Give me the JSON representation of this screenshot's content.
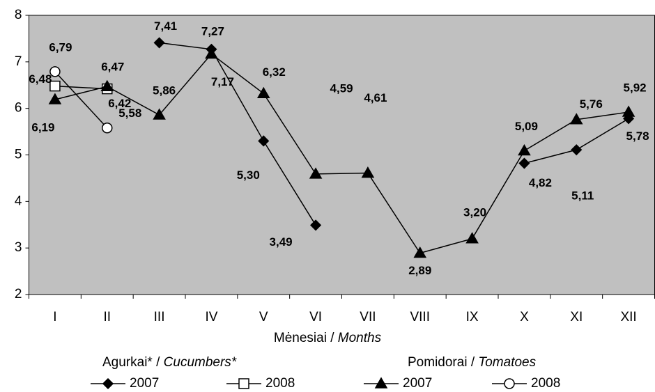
{
  "chart_data": {
    "type": "line",
    "categories": [
      "I",
      "II",
      "III",
      "IV",
      "V",
      "VI",
      "VII",
      "VIII",
      "IX",
      "X",
      "XI",
      "XII"
    ],
    "x_label": {
      "text": "Mėnesiai / ",
      "italic": "Months"
    },
    "ylim": [
      2,
      8
    ],
    "yticks": [
      2,
      3,
      4,
      5,
      6,
      7,
      8
    ],
    "plot_background": "#c0c0c0",
    "legend_groups": [
      {
        "text": "Agurkai* / ",
        "italic": "Cucumbers*"
      },
      {
        "text": "Pomidorai / ",
        "italic": "Tomatoes"
      }
    ],
    "series": [
      {
        "name": "2007",
        "group": 0,
        "marker": "diamond",
        "color": "#000000",
        "values": [
          null,
          null,
          7.41,
          7.27,
          5.3,
          3.49,
          null,
          null,
          null,
          4.82,
          5.11,
          5.78
        ],
        "value_labels": [
          null,
          null,
          "7,41",
          "7,27",
          "5,30",
          "3,49",
          null,
          null,
          null,
          "4,82",
          "5,11",
          "5,78"
        ]
      },
      {
        "name": "2008",
        "group": 0,
        "marker": "square",
        "color": "#000000",
        "values": [
          6.48,
          6.42,
          null,
          null,
          null,
          null,
          null,
          null,
          null,
          null,
          null,
          null
        ],
        "value_labels": [
          "6,48",
          "6,42",
          null,
          null,
          null,
          null,
          null,
          null,
          null,
          null,
          null,
          null
        ]
      },
      {
        "name": "2007",
        "group": 1,
        "marker": "triangle",
        "color": "#000000",
        "values": [
          6.19,
          6.47,
          5.86,
          7.17,
          6.32,
          4.59,
          4.61,
          2.89,
          3.2,
          5.09,
          5.76,
          5.92
        ],
        "value_labels": [
          "6,19",
          "6,47",
          "5,86",
          "7,17",
          "6,32",
          "4,59",
          "4,61",
          "2,89",
          "3,20",
          "5,09",
          "5,76",
          "5,92"
        ]
      },
      {
        "name": "2008",
        "group": 1,
        "marker": "circle",
        "color": "#000000",
        "values": [
          6.79,
          5.58,
          null,
          null,
          null,
          null,
          null,
          null,
          null,
          null,
          null,
          null
        ],
        "value_labels": [
          "6,79",
          "5,58",
          null,
          null,
          null,
          null,
          null,
          null,
          null,
          null,
          null,
          null
        ]
      }
    ]
  }
}
